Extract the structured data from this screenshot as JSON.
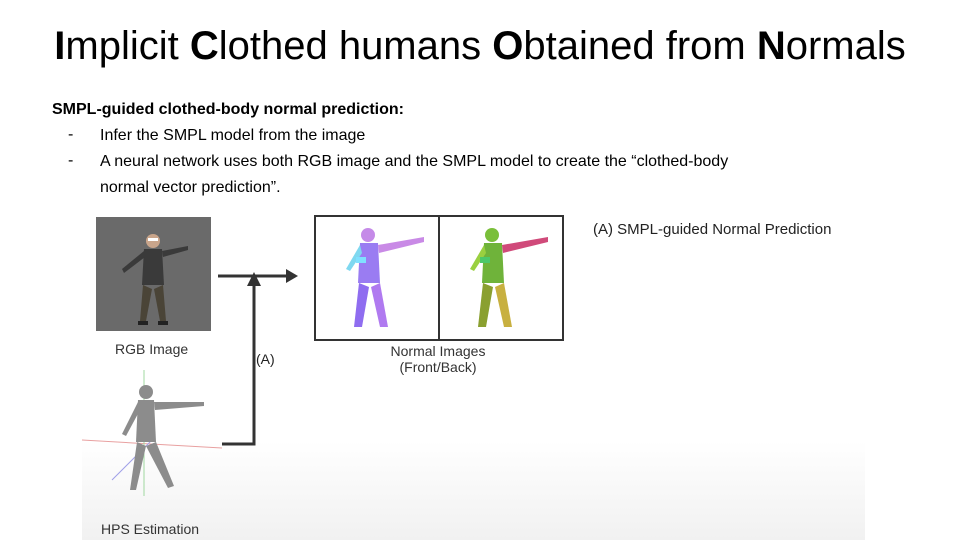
{
  "title": {
    "parts": [
      {
        "text": "I",
        "bold": true
      },
      {
        "text": "mplicit ",
        "bold": false
      },
      {
        "text": "C",
        "bold": true
      },
      {
        "text": "lothed humans ",
        "bold": false
      },
      {
        "text": "O",
        "bold": true
      },
      {
        "text": "btained from ",
        "bold": false
      },
      {
        "text": "N",
        "bold": true
      },
      {
        "text": "ormals",
        "bold": false
      }
    ]
  },
  "section": {
    "heading": "SMPL-guided clothed-body normal prediction:",
    "bullets": [
      {
        "dash": "-",
        "lines": [
          "Infer the SMPL model from the image"
        ]
      },
      {
        "dash": "-",
        "lines": [
          "A neural network uses both RGB image and the SMPL model to create the “clothed-body",
          "normal vector prediction”."
        ]
      }
    ]
  },
  "figure": {
    "rgb_label": "RGB Image",
    "hps_label": "HPS Estimation",
    "arrow_label": "(A)",
    "normal_label_line1": "Normal Images",
    "normal_label_line2": "(Front/Back)",
    "caption": "(A) SMPL-guided Normal Prediction",
    "colors": {
      "rgb_background": "#6a6a6a",
      "front_normal": "#9a7cf2",
      "back_normal": "#6fb33a",
      "hps_body": "#8c8c8c",
      "arrow": "#333333"
    }
  }
}
